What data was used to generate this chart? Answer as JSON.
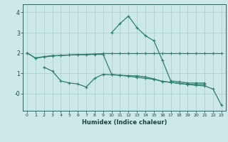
{
  "bg_color": "#cce8e8",
  "grid_color": "#aacccc",
  "line_color": "#2e7d6e",
  "xlabel": "Humidex (Indice chaleur)",
  "series1_x": [
    0,
    1,
    2,
    3,
    4,
    5,
    6,
    7,
    8,
    9,
    10,
    11,
    12,
    13,
    14,
    15,
    16,
    17,
    18,
    19,
    20,
    21,
    22,
    23
  ],
  "series1_y": [
    2.0,
    1.75,
    1.8,
    1.85,
    1.88,
    1.9,
    1.92,
    1.93,
    1.95,
    1.97,
    1.97,
    1.97,
    1.97,
    1.97,
    1.97,
    1.97,
    1.97,
    1.97,
    1.97,
    1.97,
    1.97,
    1.97,
    1.97,
    1.97
  ],
  "series2_x": [
    0,
    1,
    2,
    3,
    4,
    5,
    6,
    7,
    8,
    9,
    10,
    11,
    12,
    13,
    14,
    15,
    16,
    17,
    18,
    19,
    20,
    21,
    22,
    23
  ],
  "series2_y": [
    2.0,
    1.75,
    1.82,
    1.87,
    1.87,
    1.9,
    1.91,
    1.91,
    1.93,
    1.93,
    0.95,
    0.9,
    0.85,
    0.8,
    0.75,
    0.7,
    0.6,
    0.55,
    0.5,
    0.45,
    0.4,
    0.38,
    0.22,
    -0.58
  ],
  "series3_x": [
    2,
    3,
    4,
    5,
    6,
    7,
    8,
    9,
    10,
    11,
    12,
    13,
    14,
    15,
    16,
    17,
    18,
    19,
    20,
    21
  ],
  "series3_y": [
    1.3,
    1.1,
    0.62,
    0.52,
    0.47,
    0.32,
    0.75,
    0.95,
    0.92,
    0.9,
    0.88,
    0.87,
    0.82,
    0.72,
    0.6,
    0.55,
    0.5,
    0.45,
    0.45,
    0.45
  ],
  "series4_x": [
    10,
    11,
    12,
    13,
    14,
    15,
    16,
    17,
    18,
    19,
    20,
    21
  ],
  "series4_y": [
    3.0,
    3.45,
    3.82,
    3.25,
    2.85,
    2.6,
    1.65,
    0.62,
    0.58,
    0.52,
    0.52,
    0.52
  ],
  "xlim": [
    -0.5,
    23.5
  ],
  "ylim": [
    -0.85,
    4.4
  ],
  "yticks": [
    0,
    1,
    2,
    3,
    4
  ],
  "ytick_labels": [
    "-0",
    "1",
    "2",
    "3",
    "4"
  ],
  "xticks": [
    0,
    1,
    2,
    3,
    4,
    5,
    6,
    7,
    8,
    9,
    10,
    11,
    12,
    13,
    14,
    15,
    16,
    17,
    18,
    19,
    20,
    21,
    22,
    23
  ]
}
